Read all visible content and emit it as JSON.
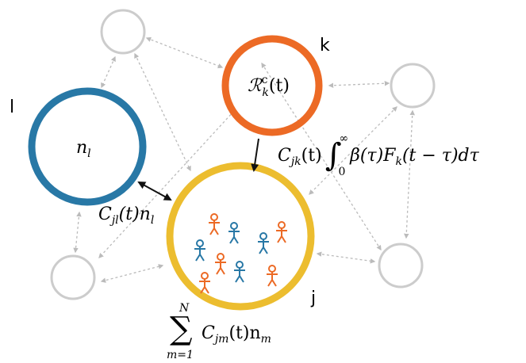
{
  "nodes": {
    "k": {
      "name": "k",
      "label": [
        "ℛ",
        "c",
        "k",
        "(t)"
      ]
    },
    "l": {
      "name": "l",
      "label": [
        "n",
        "l"
      ]
    },
    "j": {
      "name": "j"
    }
  },
  "edges": {
    "k_to_j": [
      "C",
      "jk",
      "(t)",
      "∫",
      "0",
      "∞",
      "β(τ)F",
      "k",
      "(t − τ)dτ"
    ],
    "l_with_j": [
      "C",
      "jl",
      "(t)n",
      "l"
    ],
    "others_to_j": [
      "∑",
      "N",
      "m=1",
      "C",
      "jm",
      "(t)n",
      "m"
    ]
  }
}
